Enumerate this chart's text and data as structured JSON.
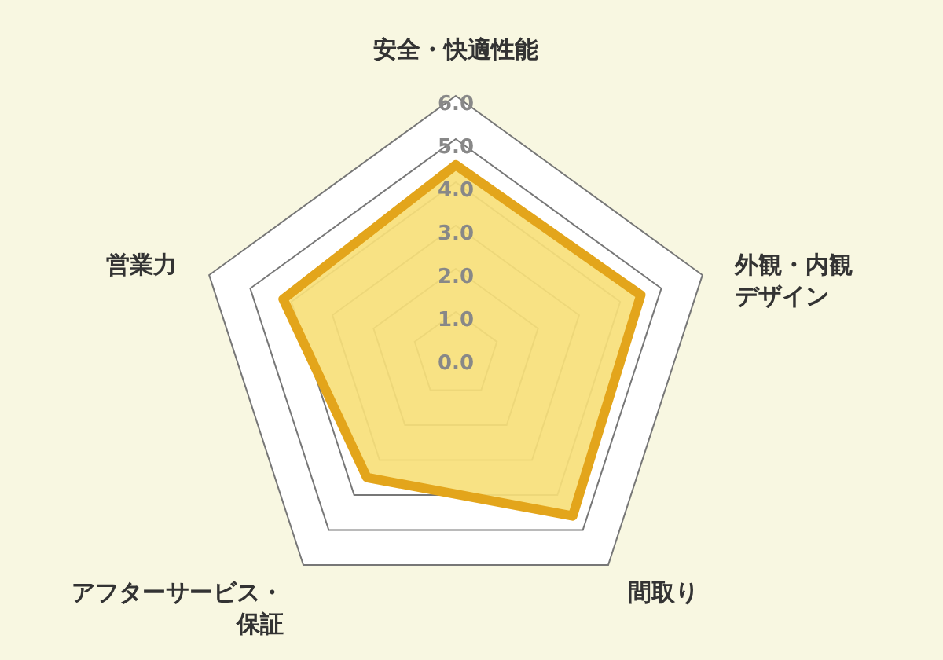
{
  "chart_data": {
    "type": "radar",
    "categories": [
      "安全・快適性能",
      "外観・内観デザイン",
      "間取り",
      "アフターサービス・保証",
      "営業力"
    ],
    "series": [
      {
        "color": "#e3a51b",
        "values": [
          4.4,
          4.5,
          4.6,
          3.5,
          4.2
        ]
      }
    ],
    "ylim": [
      0,
      6
    ],
    "yticks": [
      {
        "value": 0,
        "label": "0.0"
      },
      {
        "value": 1,
        "label": "1.0"
      },
      {
        "value": 2,
        "label": "2.0"
      },
      {
        "value": 3,
        "label": "3.0"
      },
      {
        "value": 4,
        "label": "4.0"
      },
      {
        "value": 5,
        "label": "5.0"
      },
      {
        "value": 6,
        "label": "6.0"
      }
    ],
    "grid": true,
    "marker": "none",
    "line_style": "solid"
  }
}
